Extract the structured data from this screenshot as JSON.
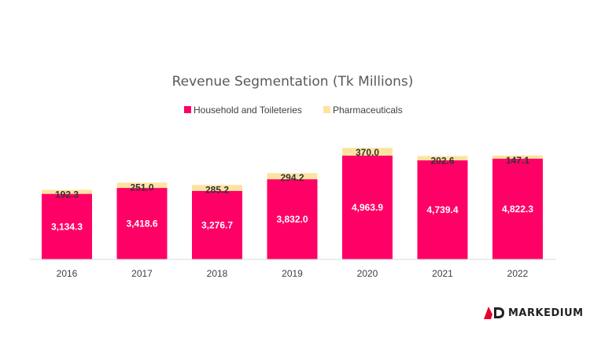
{
  "chart_data": {
    "type": "bar",
    "stacked": true,
    "title": "Revenue Segmentation (Tk Millions)",
    "categories": [
      "2016",
      "2017",
      "2018",
      "2019",
      "2020",
      "2021",
      "2022"
    ],
    "series": [
      {
        "name": "Household and Toileteries",
        "values": [
          3134.3,
          3418.6,
          3276.7,
          3832.0,
          4963.9,
          4739.4,
          4822.3
        ],
        "labels": [
          "3,134.3",
          "3,418.6",
          "3,276.7",
          "3,832.0",
          "4,963.9",
          "4,739.4",
          "4,822.3"
        ],
        "color": "#FF0066"
      },
      {
        "name": "Pharmaceuticals",
        "values": [
          192.3,
          251.0,
          285.2,
          294.2,
          370.0,
          202.6,
          147.1
        ],
        "labels": [
          "192.3",
          "251.0",
          "285.2",
          "294.2",
          "370.0",
          "202.6",
          "147.1"
        ],
        "color": "#FCE4A0"
      }
    ],
    "ylim": [
      0,
      5500
    ],
    "grid": false,
    "legend_position": "top"
  },
  "brand": {
    "name": "MARKEDIUM",
    "icon": "md-logo-icon",
    "color": "#E8002A"
  }
}
